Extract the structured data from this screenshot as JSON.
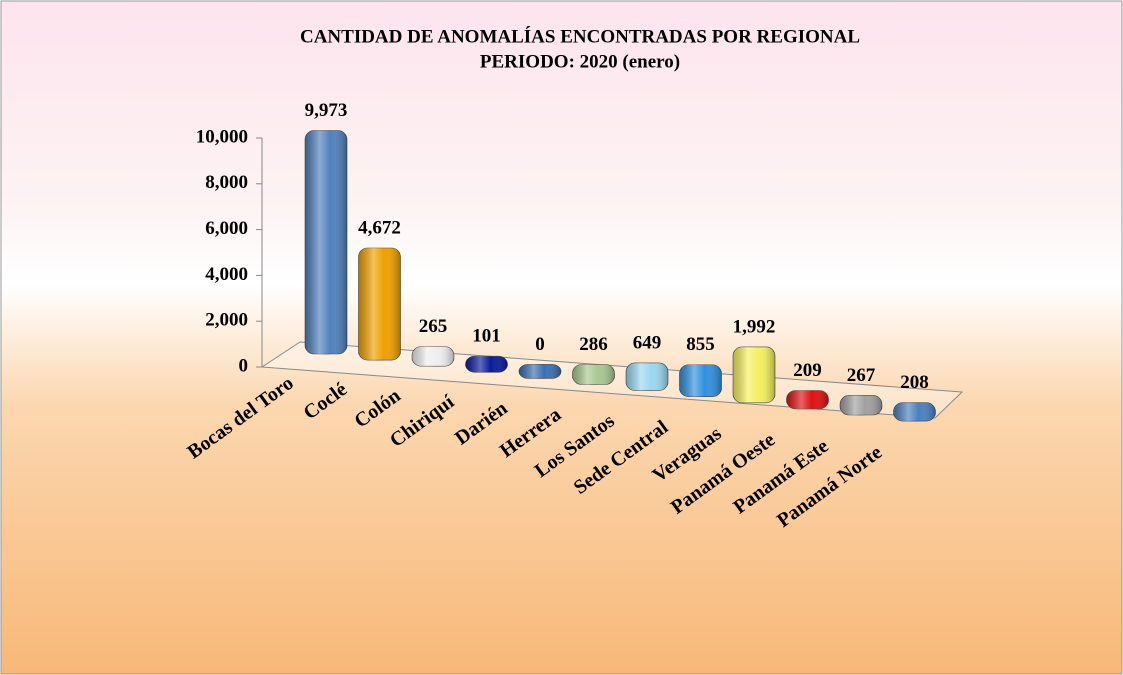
{
  "chart_data": {
    "type": "bar",
    "title": "CANTIDAD DE ANOMALÍAS ENCONTRADAS POR REGIONAL",
    "subtitle": "PERIODO: 2020 (enero)",
    "categories": [
      "Bocas del Toro",
      "Coclé",
      "Colón",
      "Chiriquí",
      "Darién",
      "Herrera",
      "Los Santos",
      "Sede Central",
      "Veraguas",
      "Panamá Oeste",
      "Panamá Este",
      "Panamá Norte"
    ],
    "values": [
      9973,
      4672,
      265,
      101,
      0,
      286,
      649,
      855,
      1992,
      209,
      267,
      208
    ],
    "value_labels": [
      "9,973",
      "4,672",
      "265",
      "101",
      "0",
      "286",
      "649",
      "855",
      "1,992",
      "209",
      "267",
      "208"
    ],
    "colors": [
      "#4f81bd",
      "#f0a000",
      "#eeeeee",
      "#0a1a9c",
      "#3a6fb0",
      "#a8c890",
      "#9ad8f0",
      "#3090e0",
      "#f4f060",
      "#e01010",
      "#a0a0a0",
      "#4a80c0"
    ],
    "ylim": [
      0,
      10000
    ],
    "yticks": [
      0,
      {
        "value": 2000,
        "label": "2,000"
      },
      {
        "value": 4000,
        "label": "4,000"
      },
      {
        "value": 6000,
        "label": "6,000"
      },
      {
        "value": 8000,
        "label": "8,000"
      },
      {
        "value": 10000,
        "label": "10,000"
      }
    ]
  }
}
